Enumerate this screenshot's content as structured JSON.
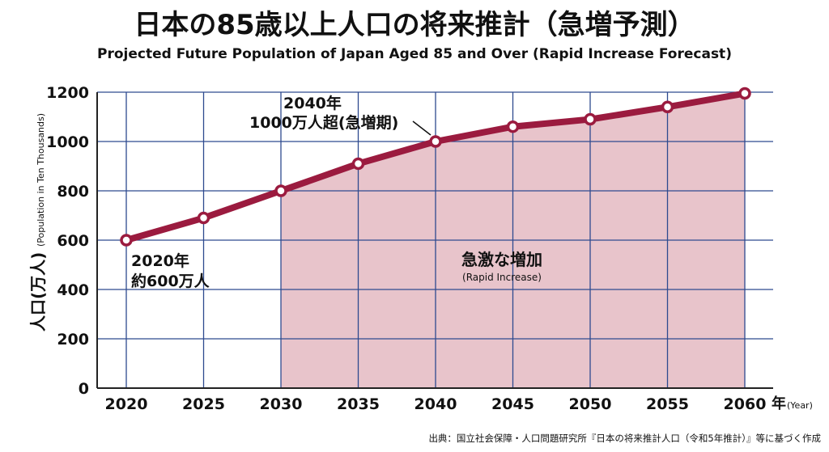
{
  "title": "日本の85歳以上人口の将来推計（急増予測）",
  "subtitle": "Projected Future Population of Japan Aged 85 and Over (Rapid Increase Forecast)",
  "source": "出典：国立社会保障・人口問題研究所『日本の将来推計人口（令和5年推計）』等に基づく作成",
  "colors": {
    "line": "#9b1b3f",
    "fill": "#e8c4cb",
    "grid": "#2e4a8f",
    "axis": "#222222"
  },
  "chart_data": {
    "type": "area",
    "x": [
      2020,
      2025,
      2030,
      2035,
      2040,
      2045,
      2050,
      2055,
      2060
    ],
    "values": [
      600,
      690,
      800,
      910,
      1000,
      1060,
      1090,
      1140,
      1195
    ],
    "shaded_from": 2030,
    "xlim": [
      2020,
      2060
    ],
    "ylim": [
      0,
      1200
    ],
    "yticks": [
      0,
      200,
      400,
      600,
      800,
      1000,
      1200
    ],
    "xtick_labels": [
      "2020",
      "2025",
      "2030",
      "2035",
      "2040",
      "2045",
      "2050",
      "2055",
      "2060"
    ],
    "ytick_labels": [
      "0",
      "200",
      "400",
      "600",
      "800",
      "1000",
      "1200"
    ],
    "xlabel": "年",
    "xlabel_en": "(Year)",
    "ylabel": "人口(万人)",
    "ylabel_en": "(Population in Ten Thousands)",
    "grid": true,
    "annotations": {
      "a2040_line1": "2040年",
      "a2040_line2": "1000万人超(急増期)",
      "a2020_line1": "2020年",
      "a2020_line2": "約600万人",
      "region_label": "急激な増加",
      "region_label_en": "(Rapid Increase)"
    }
  }
}
